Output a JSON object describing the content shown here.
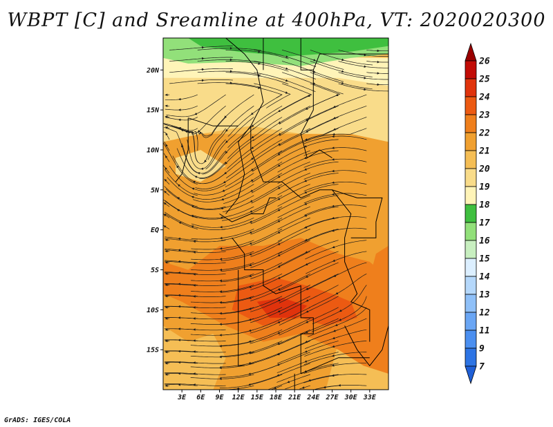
{
  "title": "WBPT [C] and Sreamline at 400hPa, VT: 2020020300",
  "credit": "GrADS: IGES/COLA",
  "map": {
    "lat_range": [
      -20,
      24
    ],
    "lon_range": [
      0,
      36
    ],
    "lat_ticks": [
      {
        "value": 20,
        "label": "20N"
      },
      {
        "value": 15,
        "label": "15N"
      },
      {
        "value": 10,
        "label": "10N"
      },
      {
        "value": 5,
        "label": "5N"
      },
      {
        "value": 0,
        "label": "EQ"
      },
      {
        "value": -5,
        "label": "5S"
      },
      {
        "value": -10,
        "label": "10S"
      },
      {
        "value": -15,
        "label": "15S"
      }
    ],
    "lon_ticks": [
      {
        "value": 3,
        "label": "3E"
      },
      {
        "value": 6,
        "label": "6E"
      },
      {
        "value": 9,
        "label": "9E"
      },
      {
        "value": 12,
        "label": "12E"
      },
      {
        "value": 15,
        "label": "15E"
      },
      {
        "value": 18,
        "label": "18E"
      },
      {
        "value": 21,
        "label": "21E"
      },
      {
        "value": 24,
        "label": "24E"
      },
      {
        "value": 27,
        "label": "27E"
      },
      {
        "value": 30,
        "label": "30E"
      },
      {
        "value": 33,
        "label": "33E"
      }
    ]
  },
  "colorbar": {
    "labels": [
      "7",
      "9",
      "11",
      "12",
      "13",
      "14",
      "15",
      "16",
      "17",
      "18",
      "19",
      "20",
      "21",
      "22",
      "23",
      "24",
      "25",
      "26"
    ],
    "colors": [
      "#1f5fd6",
      "#2d74e4",
      "#4b8ff0",
      "#6aa6f4",
      "#8fc0f8",
      "#b5d8fb",
      "#dcefff",
      "#c8efc0",
      "#92e07a",
      "#3fbf3f",
      "#fff4b8",
      "#f9dc8a",
      "#f5be55",
      "#f0a030",
      "#ef7f1c",
      "#ec5a12",
      "#e0330c",
      "#c20c06",
      "#9a0000"
    ]
  },
  "temp_colors": {
    "t17": "#3fbf3f",
    "t18": "#92e07a",
    "t19": "#fff4b8",
    "t20": "#f9dc8a",
    "t21": "#f5be55",
    "t22": "#f0a030",
    "t23": "#ef7f1c",
    "t24": "#ec5a12",
    "t25": "#e0330c"
  }
}
